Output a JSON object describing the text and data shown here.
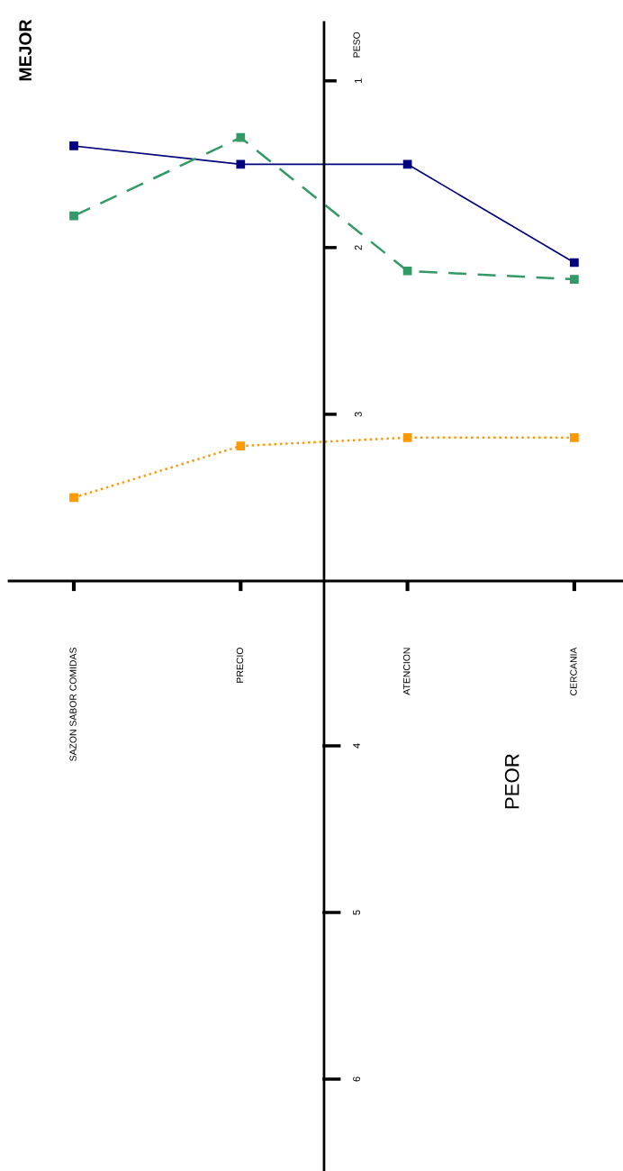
{
  "chart_data": [
    {
      "type": "line",
      "ylabel": "PESO",
      "categories": [
        "SAZON SABOR COMIDAS",
        "PRECIO",
        "ATENCION",
        "CERCANIA"
      ],
      "ylim": [
        4.0,
        0.65
      ],
      "yticks": [
        1,
        2,
        3
      ],
      "marker": "square",
      "grid": false,
      "legend": false,
      "annotations": [
        "MEJOR"
      ],
      "series": [
        {
          "color": "#000080",
          "line_style": "solid",
          "values": [
            1.39,
            1.5,
            1.5,
            2.09
          ]
        },
        {
          "color": "#339966",
          "line_style": "dashed",
          "values": [
            1.81,
            1.34,
            2.14,
            2.19
          ]
        },
        {
          "color": "#ff9900",
          "line_style": "dotted",
          "values": [
            3.5,
            3.19,
            3.14,
            3.14
          ]
        }
      ]
    },
    {
      "type": "other",
      "annotations": [
        "4",
        "5",
        "6",
        "PEOR"
      ]
    }
  ]
}
